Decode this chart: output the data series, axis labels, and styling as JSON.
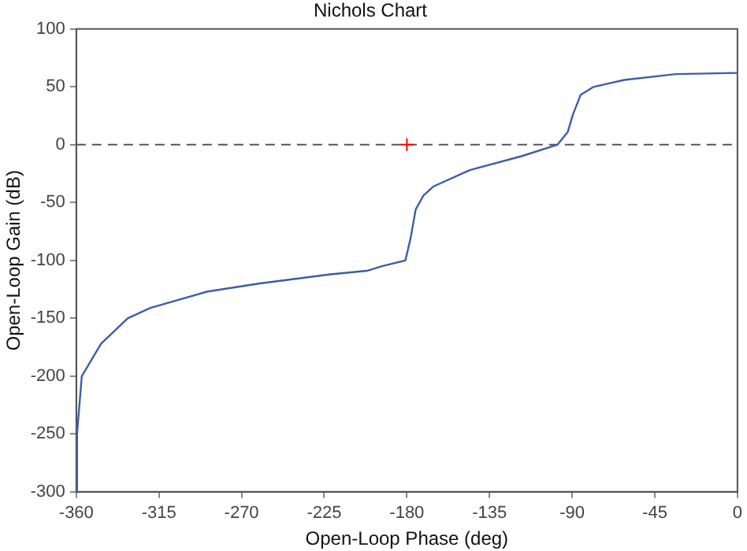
{
  "chart_data": {
    "type": "line",
    "title": "Nichols Chart",
    "xlabel": "Open-Loop Phase (deg)",
    "ylabel": "Open-Loop Gain (dB)",
    "xlim": [
      -360,
      0
    ],
    "xticks": [
      -360,
      -315,
      -270,
      -225,
      -180,
      -135,
      -90,
      -45,
      0
    ],
    "ylim": [
      -300,
      100
    ],
    "yticks": [
      -300,
      -250,
      -200,
      -150,
      -100,
      -50,
      0,
      50,
      100
    ],
    "grid": false,
    "legend": false,
    "ref_lines": [
      {
        "axis": "y",
        "value": 0,
        "color": "#555555",
        "line_style": "dashed"
      }
    ],
    "series": [
      {
        "type": "line",
        "color": "#3a5fa8",
        "marker": "none",
        "line_style": "solid",
        "x": [
          -360,
          -359.6,
          -357,
          -346.5,
          -332,
          -319.6,
          -288.8,
          -260.6,
          -221.5,
          -201.8,
          -193.5,
          -180.8,
          -178,
          -175.2,
          -171,
          -165.4,
          -145.8,
          -117.7,
          -98,
          -92.4,
          -89.6,
          -85.4,
          -78.3,
          -61.5,
          -33.5,
          0
        ],
        "values": [
          -300,
          -250,
          -200,
          -172,
          -150,
          -141,
          -127,
          -120,
          -112,
          -109,
          -105,
          -100,
          -81,
          -56,
          -44,
          -36,
          -22,
          -10,
          0,
          11,
          26,
          43,
          50,
          56,
          61,
          62
        ]
      },
      {
        "type": "scatter",
        "color": "#ff0000",
        "marker": "cross",
        "x": [
          -180
        ],
        "values": [
          0
        ]
      }
    ]
  }
}
